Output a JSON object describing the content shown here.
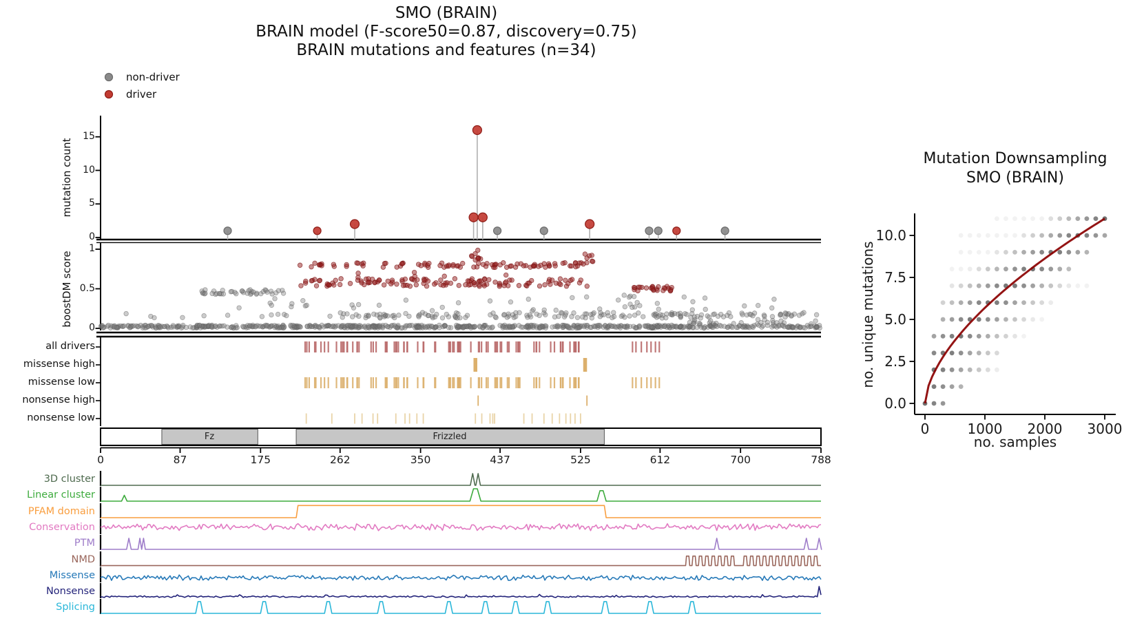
{
  "title": {
    "line1": "SMO (BRAIN)",
    "line2": "BRAIN model (F-score50=0.87, discovery=0.75)",
    "line3": "BRAIN mutations and features (n=34)"
  },
  "legend": {
    "items": [
      {
        "label": "non-driver",
        "color": "#8a8a8a",
        "edge": "#6b6b6b"
      },
      {
        "label": "driver",
        "color": "#c23b32",
        "edge": "#8e1d17"
      }
    ]
  },
  "colors": {
    "needle_stem": "#b0b0b0",
    "score_non_driver": "#787878",
    "score_driver": "#962020",
    "curve": "#8b0000",
    "domain_fill": "#c6c6c6",
    "downsample_dot": "#4a4a4a"
  },
  "chart_data": [
    {
      "id": "needle_plot",
      "type": "scatter",
      "ylabel": "mutation count",
      "yticks": [
        0,
        5,
        10,
        15
      ],
      "xlim": [
        0,
        788
      ],
      "lollipops": [
        {
          "pos": 139,
          "count": 1,
          "cls": "non-driver"
        },
        {
          "pos": 237,
          "count": 1,
          "cls": "driver"
        },
        {
          "pos": 278,
          "count": 2,
          "cls": "driver"
        },
        {
          "pos": 408,
          "count": 3,
          "cls": "driver"
        },
        {
          "pos": 412,
          "count": 16,
          "cls": "driver"
        },
        {
          "pos": 418,
          "count": 3,
          "cls": "driver"
        },
        {
          "pos": 434,
          "count": 1,
          "cls": "non-driver"
        },
        {
          "pos": 485,
          "count": 1,
          "cls": "non-driver"
        },
        {
          "pos": 535,
          "count": 2,
          "cls": "driver"
        },
        {
          "pos": 600,
          "count": 1,
          "cls": "non-driver"
        },
        {
          "pos": 610,
          "count": 1,
          "cls": "non-driver"
        },
        {
          "pos": 630,
          "count": 1,
          "cls": "driver"
        },
        {
          "pos": 683,
          "count": 1,
          "cls": "non-driver"
        }
      ]
    },
    {
      "id": "score_plot",
      "type": "scatter",
      "ylabel": "boostDM score",
      "yticks": [
        0,
        0.5,
        1
      ],
      "ylim": [
        0,
        1
      ],
      "bands": [
        [
          "gray",
          0,
          788,
          0.005,
          0.04,
          650
        ],
        [
          "gray",
          255,
          786,
          0.13,
          0.2,
          170
        ],
        [
          "gray",
          25,
          255,
          0.13,
          0.19,
          12
        ],
        [
          "gray",
          100,
          202,
          0.43,
          0.49,
          42
        ],
        [
          "gray",
          150,
          780,
          0.21,
          0.4,
          40
        ],
        [
          "gray",
          558,
          592,
          0.24,
          0.42,
          9
        ],
        [
          "gray",
          640,
          786,
          0.05,
          0.12,
          25
        ],
        [
          "red",
          218,
          532,
          0.77,
          0.83,
          92
        ],
        [
          "red",
          218,
          535,
          0.53,
          0.63,
          125
        ],
        [
          "red",
          405,
          416,
          0.84,
          0.99,
          9
        ],
        [
          "red",
          528,
          540,
          0.84,
          0.97,
          6
        ],
        [
          "red",
          578,
          625,
          0.47,
          0.53,
          26
        ],
        [
          "red",
          230,
          530,
          0.64,
          0.71,
          6
        ]
      ]
    },
    {
      "id": "driver_tracks",
      "type": "ticks",
      "rows": [
        {
          "label": "all drivers",
          "color": "#b96a6a",
          "style": "dense",
          "seed": 7,
          "segments": [
            [
              222,
              530,
              85
            ],
            [
              570,
              620,
              7
            ]
          ]
        },
        {
          "label": "missense high",
          "color": "#d8a75c",
          "style": "thick",
          "positions": [
            410,
            530
          ]
        },
        {
          "label": "missense low",
          "color": "#dcb06e",
          "style": "dense",
          "seed": 7,
          "segments": [
            [
              222,
              530,
              85
            ],
            [
              570,
              620,
              7
            ]
          ]
        },
        {
          "label": "nonsense high",
          "color": "#d8a75c",
          "style": "thin",
          "positions": [
            413,
            532
          ]
        },
        {
          "label": "nonsense low",
          "color": "#e7cf9f",
          "style": "thin",
          "positions": [
            225,
            253,
            278,
            286,
            298,
            303,
            323,
            333,
            338,
            346,
            353,
            410,
            417,
            426,
            429,
            431,
            463,
            472,
            485,
            494,
            502,
            509,
            514,
            519,
            525
          ]
        }
      ]
    },
    {
      "id": "protein_axis",
      "type": "axis",
      "xmax": 788,
      "xticks": [
        0,
        87,
        175,
        262,
        350,
        437,
        525,
        612,
        700,
        788
      ],
      "domains": [
        {
          "name": "Fz",
          "start": 67,
          "end": 172
        },
        {
          "name": "Frizzled",
          "start": 214,
          "end": 551
        }
      ]
    },
    {
      "id": "feature_tracks",
      "type": "line-tracks",
      "rows": [
        {
          "label": "3D cluster",
          "color": "#4e6a4e",
          "type": "spikes",
          "spikes": [
            [
              407,
              2.5,
              0.9
            ],
            [
              413,
              2.5,
              0.9
            ]
          ]
        },
        {
          "label": "Linear cluster",
          "color": "#3dab3d",
          "type": "spikes",
          "spikes": [
            [
              26,
              3,
              0.45
            ],
            [
              410,
              6,
              0.95
            ],
            [
              548,
              5,
              0.8
            ]
          ]
        },
        {
          "label": "PFAM domain",
          "color": "#f99e3f",
          "type": "step",
          "high": [
            214,
            551
          ]
        },
        {
          "label": "Conservation",
          "color": "#e27ac2",
          "type": "noise",
          "mean": 0.5,
          "amp": 0.3,
          "seed": 11
        },
        {
          "label": "PTM",
          "color": "#9e7cc9",
          "type": "spikes",
          "spikes": [
            [
              31,
              2.5,
              0.85
            ],
            [
              43,
              2,
              0.85
            ],
            [
              47,
              2,
              0.85
            ],
            [
              674,
              2.5,
              0.85
            ],
            [
              772,
              2.5,
              0.85
            ],
            [
              786,
              2.5,
              0.85
            ]
          ]
        },
        {
          "label": "NMD",
          "color": "#9a675c",
          "type": "pulses",
          "from": 640,
          "to": 788,
          "period": 7,
          "h": 0.75,
          "seed": 41
        },
        {
          "label": "Missense",
          "color": "#2679b8",
          "type": "noise",
          "mean": 0.3,
          "amp": 0.22,
          "seed": 23
        },
        {
          "label": "Nonsense",
          "color": "#23237a",
          "type": "noise",
          "mean": 0.07,
          "amp": 0.08,
          "seed": 31,
          "end_spike": [
            786,
            0.85
          ]
        },
        {
          "label": "Splicing",
          "color": "#2ab7d9",
          "type": "spikes",
          "spikes": [
            [
              108,
              4,
              0.9
            ],
            [
              179,
              4,
              0.9
            ],
            [
              249,
              4,
              0.9
            ],
            [
              307,
              4,
              0.9
            ],
            [
              381,
              4,
              0.9
            ],
            [
              421,
              4,
              0.9
            ],
            [
              454,
              4,
              0.9
            ],
            [
              489,
              4,
              0.9
            ],
            [
              552,
              4,
              0.9
            ],
            [
              601,
              4,
              0.9
            ],
            [
              647,
              4,
              0.9
            ]
          ]
        }
      ]
    },
    {
      "id": "downsampling",
      "type": "scatter",
      "title_line1": "Mutation Downsampling",
      "title_line2": "SMO (BRAIN)",
      "xlabel": "no. samples",
      "ylabel": "no. unique mutations",
      "xticks": [
        0,
        1000,
        2000,
        3000
      ],
      "yticks": [
        0.0,
        2.5,
        5.0,
        7.5,
        10.0
      ],
      "x_step": 150,
      "dot_rows": [
        [
          0,
          0,
          300
        ],
        [
          1,
          150,
          600
        ],
        [
          2,
          150,
          1200
        ],
        [
          3,
          150,
          1200
        ],
        [
          4,
          150,
          1750
        ],
        [
          5,
          300,
          2050
        ],
        [
          6,
          300,
          2200
        ],
        [
          7,
          450,
          2800
        ],
        [
          8,
          450,
          2400
        ],
        [
          9,
          600,
          2700
        ],
        [
          10,
          600,
          3000
        ],
        [
          11,
          1200,
          3000
        ]
      ],
      "curve": {
        "ymax": 11,
        "xmax": 3000,
        "exponent": 0.6,
        "color": "#8b0000"
      }
    }
  ]
}
